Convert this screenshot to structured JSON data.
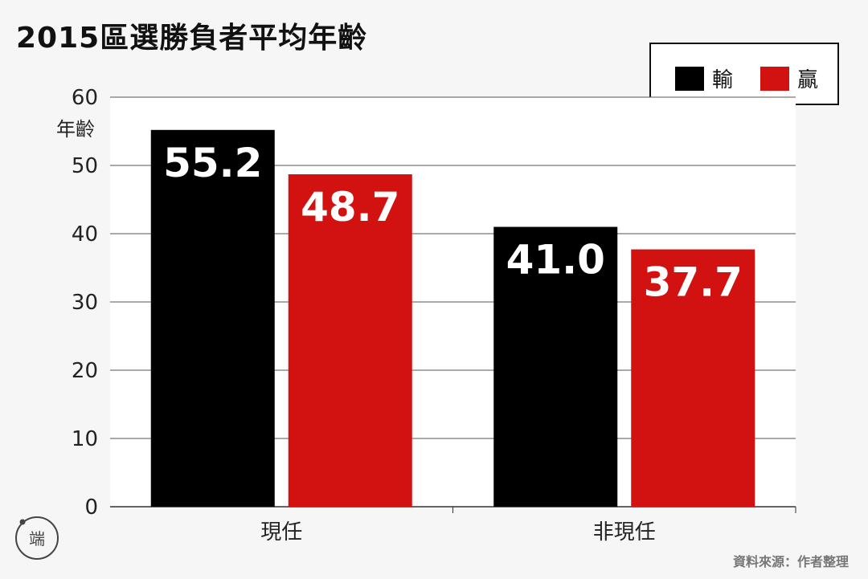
{
  "title": "2015區選勝負者平均年齡",
  "source": "資料來源：作者整理",
  "logo_text": "端",
  "colors": {
    "lose": "#000000",
    "win": "#d21111",
    "axis": "#333333"
  },
  "legend": [
    {
      "label": "輸",
      "color": "#000000"
    },
    {
      "label": "贏",
      "color": "#d21111"
    }
  ],
  "chart_data": {
    "type": "bar",
    "title": "2015區選勝負者平均年齡",
    "ylabel": "年齡",
    "xlabel": "",
    "categories": [
      "現任",
      "非現任"
    ],
    "series": [
      {
        "name": "輸",
        "values": [
          55.2,
          41.0
        ],
        "labels": [
          "55.2",
          "41.0"
        ],
        "color": "#000000"
      },
      {
        "name": "贏",
        "values": [
          48.7,
          37.7
        ],
        "labels": [
          "48.7",
          "37.7"
        ],
        "color": "#d21111"
      }
    ],
    "ylim": [
      0,
      60
    ],
    "yticks": [
      0,
      10,
      20,
      30,
      40,
      50,
      60
    ],
    "grid": true,
    "legend_position": "top-right"
  }
}
